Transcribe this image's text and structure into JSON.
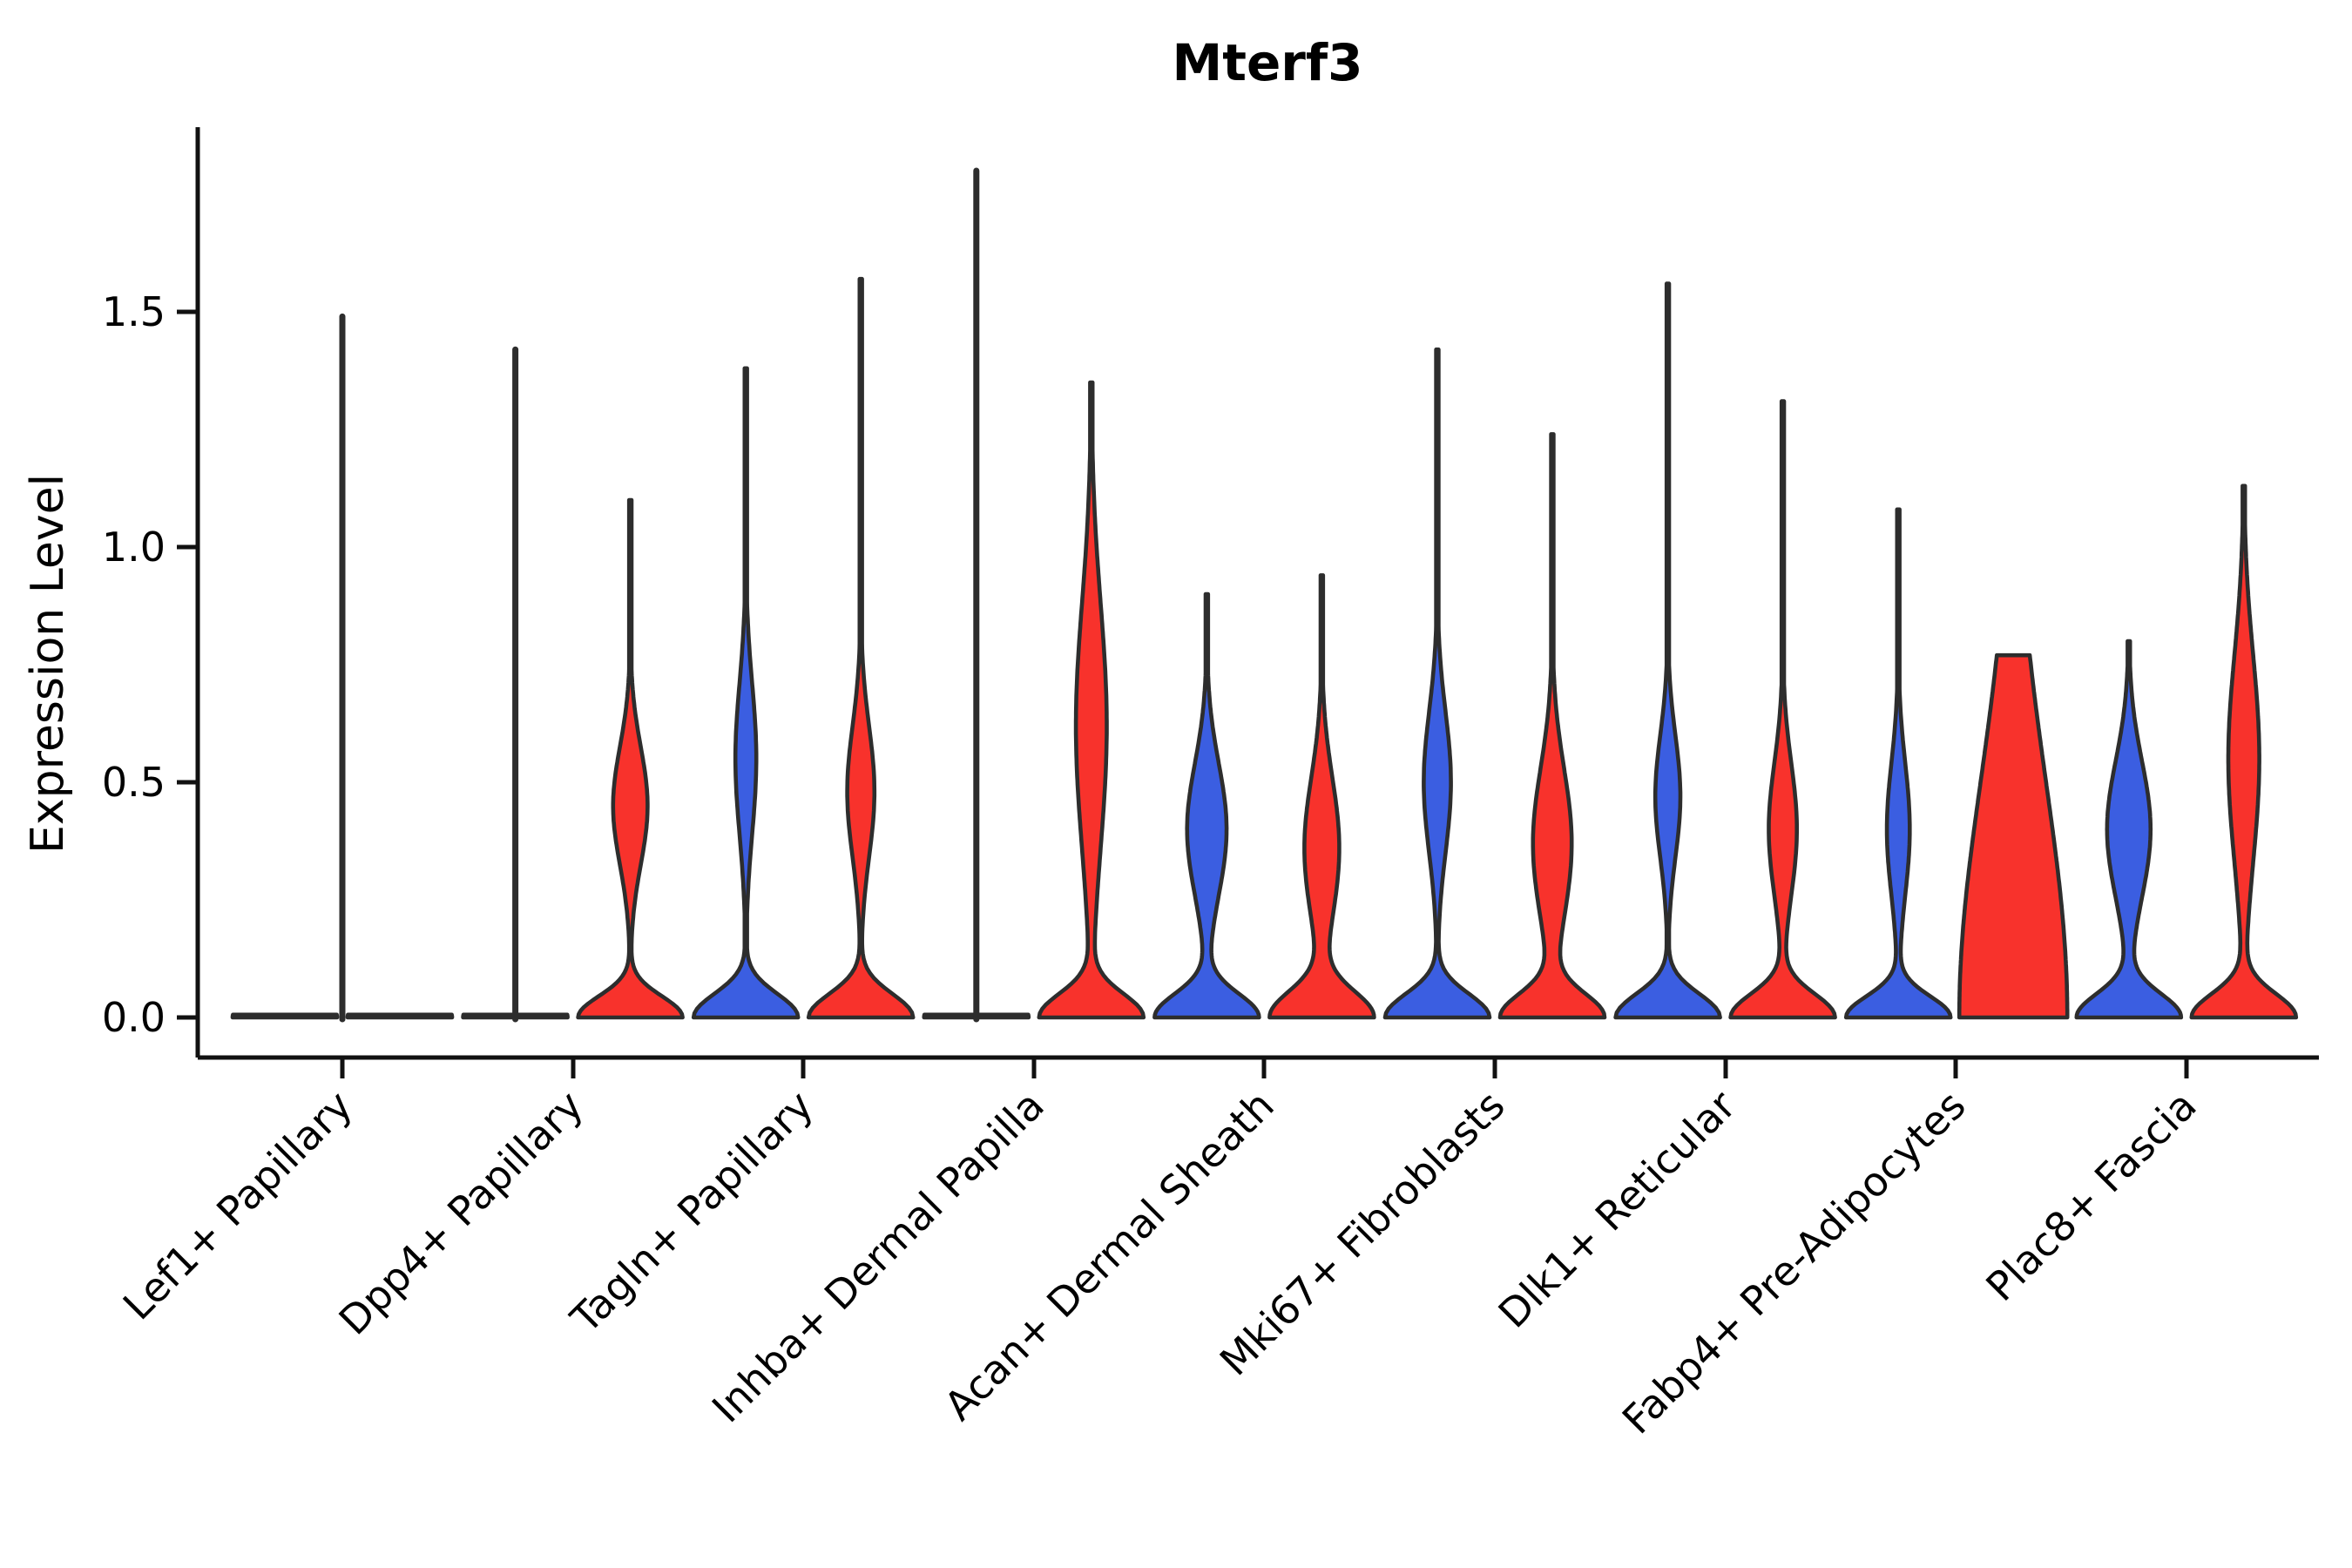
{
  "title": "Mterf3",
  "ylabel": "Expression Level",
  "colors": {
    "group_blue": "#3B5EE1",
    "group_red": "#F8322C",
    "outline": "#2D2D2D",
    "axis": "#111111"
  },
  "chart_data": {
    "type": "violin",
    "title": "Mterf3",
    "ylabel": "Expression Level",
    "xlabel": "",
    "ylim": [
      -0.08,
      1.89
    ],
    "yticks": [
      0.0,
      0.5,
      1.0,
      1.5
    ],
    "ytick_labels": [
      "0.0",
      "0.5",
      "1.0",
      "1.5"
    ],
    "grid": "off",
    "legend_position": "none",
    "groups": [
      {
        "name": "blue",
        "color": "#3B5EE1"
      },
      {
        "name": "red",
        "color": "#F8322C"
      }
    ],
    "categories": [
      "Lef1+ Papillary",
      "Dpp4+ Papillary",
      "Tagln+ Papillary",
      "Inhba+ Dermal Papilla",
      "Acan+ Dermal Sheath",
      "Mki67+ Fibroblasts",
      "Dlk1+ Reticular",
      "Fabp4+ Pre-Adipocytes",
      "Plac8+ Fascia"
    ],
    "violins": [
      {
        "category": "Lef1+ Papillary",
        "parts": [
          {
            "group": "blue",
            "max": 0.0,
            "flat": true,
            "components": [
              [
                0,
                0.05,
                1
              ]
            ]
          },
          {
            "group": "red",
            "max": 1.49,
            "flat": true,
            "spike": {
              "top": 1.49,
              "dx": -66
            },
            "components": [
              [
                0,
                0.05,
                1
              ]
            ]
          }
        ]
      },
      {
        "category": "Dpp4+ Papillary",
        "parts": [
          {
            "group": "blue",
            "max": 1.42,
            "flat": true,
            "spike": {
              "top": 1.42,
              "dx": 0
            },
            "components": [
              [
                0,
                0.05,
                1
              ]
            ]
          },
          {
            "group": "red",
            "max": 1.1,
            "flat": false,
            "components": [
              [
                0,
                0.045,
                1
              ],
              [
                0.45,
                0.125,
                0.33
              ]
            ]
          }
        ]
      },
      {
        "category": "Tagln+ Papillary",
        "parts": [
          {
            "group": "blue",
            "max": 1.38,
            "flat": false,
            "components": [
              [
                0,
                0.05,
                1
              ],
              [
                0.55,
                0.16,
                0.2
              ]
            ]
          },
          {
            "group": "red",
            "max": 1.57,
            "flat": false,
            "components": [
              [
                0,
                0.05,
                1
              ],
              [
                0.48,
                0.14,
                0.26
              ]
            ]
          }
        ]
      },
      {
        "category": "Inhba+ Dermal Papilla",
        "parts": [
          {
            "group": "blue",
            "max": 1.8,
            "flat": true,
            "spike": {
              "top": 1.8,
              "dx": 0
            },
            "components": [
              [
                0,
                0.05,
                1
              ]
            ]
          },
          {
            "group": "red",
            "max": 1.35,
            "flat": false,
            "components": [
              [
                0,
                0.05,
                1
              ],
              [
                0.62,
                0.26,
                0.3
              ]
            ]
          }
        ]
      },
      {
        "category": "Acan+ Dermal Sheath",
        "parts": [
          {
            "group": "blue",
            "max": 0.9,
            "flat": false,
            "components": [
              [
                0,
                0.05,
                1
              ],
              [
                0.4,
                0.14,
                0.38
              ]
            ]
          },
          {
            "group": "red",
            "max": 0.94,
            "flat": false,
            "components": [
              [
                0,
                0.055,
                1
              ],
              [
                0.36,
                0.15,
                0.34
              ]
            ]
          }
        ]
      },
      {
        "category": "Mki67+ Fibroblasts",
        "parts": [
          {
            "group": "blue",
            "max": 1.42,
            "flat": false,
            "components": [
              [
                0,
                0.05,
                1
              ],
              [
                0.5,
                0.15,
                0.26
              ]
            ]
          },
          {
            "group": "red",
            "max": 1.24,
            "flat": false,
            "components": [
              [
                0,
                0.05,
                1
              ],
              [
                0.37,
                0.16,
                0.38
              ]
            ]
          }
        ]
      },
      {
        "category": "Dlk1+ Reticular",
        "parts": [
          {
            "group": "blue",
            "max": 1.56,
            "flat": false,
            "components": [
              [
                0,
                0.05,
                1
              ],
              [
                0.47,
                0.13,
                0.24
              ]
            ]
          },
          {
            "group": "red",
            "max": 1.31,
            "flat": false,
            "components": [
              [
                0,
                0.05,
                1
              ],
              [
                0.4,
                0.14,
                0.27
              ]
            ]
          }
        ]
      },
      {
        "category": "Fabp4+ Pre-Adipocytes",
        "parts": [
          {
            "group": "blue",
            "max": 1.08,
            "flat": false,
            "components": [
              [
                0,
                0.045,
                1
              ],
              [
                0.4,
                0.14,
                0.22
              ]
            ]
          },
          {
            "group": "red",
            "max": 0.77,
            "flat": false,
            "hw": 62,
            "components": [
              [
                0,
                0.5,
                1
              ]
            ]
          }
        ]
      },
      {
        "category": "Plac8+ Fascia",
        "parts": [
          {
            "group": "blue",
            "max": 0.8,
            "flat": false,
            "components": [
              [
                0,
                0.05,
                1
              ],
              [
                0.4,
                0.145,
                0.42
              ]
            ]
          },
          {
            "group": "red",
            "max": 1.13,
            "flat": false,
            "components": [
              [
                0,
                0.05,
                1
              ],
              [
                0.55,
                0.22,
                0.3
              ]
            ]
          }
        ]
      }
    ]
  }
}
